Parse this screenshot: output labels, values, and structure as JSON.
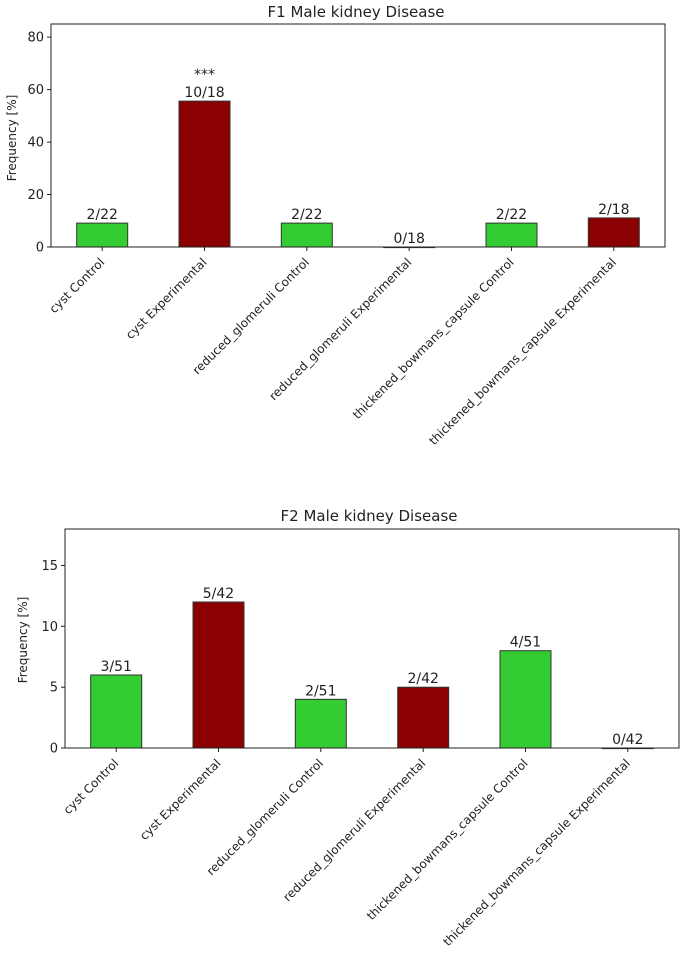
{
  "colors": {
    "control": "#33cc33",
    "experimental": "#8b0000"
  },
  "chart_data": [
    {
      "type": "bar",
      "title": "F1 Male kidney Disease",
      "ylabel": "Frequency [%]",
      "xlabel": "",
      "ylim": [
        0,
        85
      ],
      "yticks": [
        0,
        20,
        40,
        60,
        80
      ],
      "categories": [
        "cyst Control",
        "cyst Experimental",
        "reduced_glomeruli Control",
        "reduced_glomeruli Experimental",
        "thickened_bowmans_capsule Control",
        "thickened_bowmans_capsule Experimental"
      ],
      "values": [
        9.1,
        55.6,
        9.1,
        0,
        9.1,
        11.1
      ],
      "groups": [
        "control",
        "experimental",
        "control",
        "experimental",
        "control",
        "experimental"
      ],
      "bar_labels": [
        "2/22",
        "10/18",
        "2/22",
        "0/18",
        "2/22",
        "2/18"
      ],
      "annotations": [
        "",
        "***",
        "",
        "",
        "",
        ""
      ]
    },
    {
      "type": "bar",
      "title": "F2 Male kidney Disease",
      "ylabel": "Frequency [%]",
      "xlabel": "",
      "ylim": [
        0,
        18
      ],
      "yticks": [
        0,
        5,
        10,
        15
      ],
      "categories": [
        "cyst Control",
        "cyst Experimental",
        "reduced_glomeruli Control",
        "reduced_glomeruli Experimental",
        "thickened_bowmans_capsule Control",
        "thickened_bowmans_capsule Experimental"
      ],
      "values": [
        6,
        12,
        4,
        5,
        8,
        0
      ],
      "groups": [
        "control",
        "experimental",
        "control",
        "experimental",
        "control",
        "experimental"
      ],
      "bar_labels": [
        "3/51",
        "5/42",
        "2/51",
        "2/42",
        "4/51",
        "0/42"
      ],
      "annotations": [
        "",
        "",
        "",
        "",
        "",
        ""
      ]
    }
  ]
}
